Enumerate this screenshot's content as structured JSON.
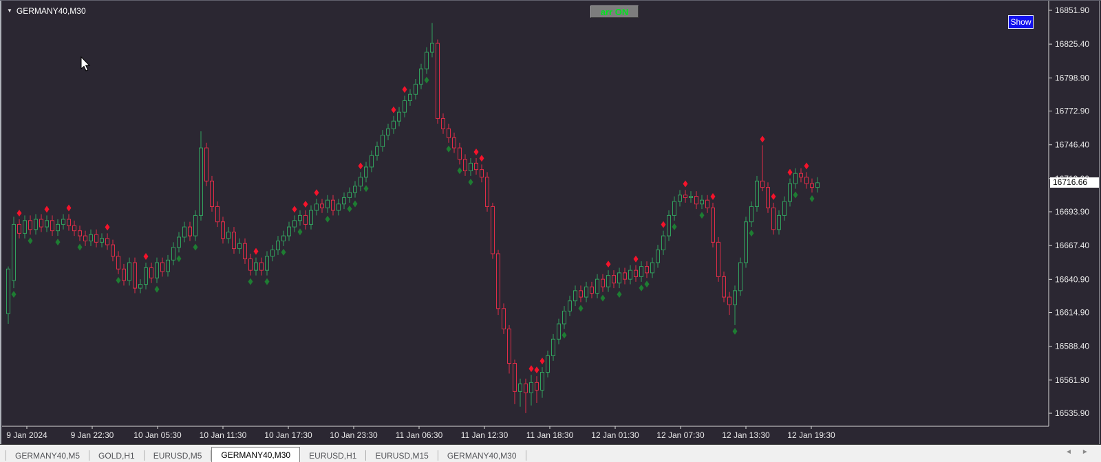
{
  "window": {
    "symbol_label": "GERMANY40,M30",
    "dropdown_icon": "▼"
  },
  "buttons": {
    "arr_toggle_label": "arr ON",
    "show_label": "Show"
  },
  "price_axis": {
    "labels": [
      "16851.90",
      "16825.40",
      "16798.90",
      "16772.90",
      "16746.40",
      "16719.90",
      "16693.90",
      "16667.40",
      "16640.90",
      "16614.90",
      "16588.40",
      "16561.90",
      "16535.90"
    ],
    "current_price": "16716.66"
  },
  "time_axis": {
    "labels": [
      "9 Jan 2024",
      "9 Jan 22:30",
      "10 Jan 05:30",
      "10 Jan 11:30",
      "10 Jan 17:30",
      "10 Jan 23:30",
      "11 Jan 06:30",
      "11 Jan 12:30",
      "11 Jan 18:30",
      "12 Jan 01:30",
      "12 Jan 07:30",
      "12 Jan 13:30",
      "12 Jan 19:30"
    ]
  },
  "tabs": {
    "items": [
      {
        "label": "GERMANY40,M5",
        "active": false
      },
      {
        "label": "GOLD,H1",
        "active": false
      },
      {
        "label": "EURUSD,M5",
        "active": false
      },
      {
        "label": "GERMANY40,M30",
        "active": true
      },
      {
        "label": "EURUSD,H1",
        "active": false
      },
      {
        "label": "EURUSD,M15",
        "active": false
      },
      {
        "label": "GERMANY40,M30",
        "active": false
      }
    ],
    "scroll_left_icon": "◄",
    "scroll_right_icon": "►"
  },
  "colors": {
    "background": "#2b2732",
    "bull_candle": "#32a15e",
    "bear_candle": "#e02d48",
    "sell_arrow": "#f5132b",
    "buy_arrow": "#1e7d32",
    "axis_text": "#e8e8e8",
    "axis_line": "#d8d8d8",
    "arr_button_text": "#00e51f",
    "show_button_bg": "#1212ee",
    "current_price_bg": "#ffffff"
  },
  "chart_data": {
    "type": "candlestick",
    "title": "GERMANY40,M30",
    "symbol": "GERMANY40",
    "timeframe": "M30",
    "ylim": [
      16525.6,
      16859.45
    ],
    "x_tick_labels": [
      "9 Jan 2024",
      "9 Jan 22:30",
      "10 Jan 05:30",
      "10 Jan 11:30",
      "10 Jan 17:30",
      "10 Jan 23:30",
      "11 Jan 06:30",
      "11 Jan 12:30",
      "11 Jan 18:30",
      "12 Jan 01:30",
      "12 Jan 07:30",
      "12 Jan 13:30",
      "12 Jan 19:30"
    ],
    "y_tick_values": [
      16851.9,
      16825.4,
      16798.9,
      16772.9,
      16746.4,
      16719.9,
      16693.9,
      16667.4,
      16640.9,
      16614.9,
      16588.4,
      16561.9,
      16535.9
    ],
    "current_price": 16716.66,
    "grid": false,
    "bar_format": [
      "open",
      "high",
      "low",
      "close",
      "marker(0=none,1=sell_red_diamond_above,2=buy_green_diamond_below)"
    ],
    "bars": [
      [
        16614,
        16651,
        16606,
        16649,
        0
      ],
      [
        16640,
        16690,
        16634,
        16684,
        2
      ],
      [
        16684,
        16688,
        16673,
        16677,
        1
      ],
      [
        16677,
        16691,
        16673,
        16687,
        0
      ],
      [
        16687,
        16691,
        16676,
        16680,
        2
      ],
      [
        16680,
        16692,
        16676,
        16688,
        0
      ],
      [
        16688,
        16692,
        16678,
        16682,
        0
      ],
      [
        16682,
        16691,
        16678,
        16687,
        1
      ],
      [
        16687,
        16691,
        16675,
        16679,
        0
      ],
      [
        16679,
        16688,
        16675,
        16684,
        2
      ],
      [
        16684,
        16692,
        16680,
        16688,
        0
      ],
      [
        16688,
        16692,
        16679,
        16683,
        1
      ],
      [
        16683,
        16687,
        16675,
        16679,
        0
      ],
      [
        16679,
        16683,
        16671,
        16675,
        2
      ],
      [
        16675,
        16679,
        16667,
        16671,
        0
      ],
      [
        16671,
        16680,
        16667,
        16676,
        0
      ],
      [
        16676,
        16680,
        16666,
        16670,
        0
      ],
      [
        16670,
        16677,
        16666,
        16673,
        0
      ],
      [
        16673,
        16677,
        16664,
        16668,
        1
      ],
      [
        16668,
        16672,
        16655,
        16659,
        0
      ],
      [
        16659,
        16663,
        16645,
        16649,
        2
      ],
      [
        16649,
        16653,
        16636,
        16640,
        0
      ],
      [
        16640,
        16658,
        16636,
        16654,
        0
      ],
      [
        16654,
        16658,
        16630,
        16634,
        0
      ],
      [
        16634,
        16641,
        16630,
        16637,
        0
      ],
      [
        16637,
        16654,
        16633,
        16650,
        1
      ],
      [
        16650,
        16654,
        16638,
        16642,
        0
      ],
      [
        16642,
        16658,
        16638,
        16654,
        2
      ],
      [
        16654,
        16658,
        16643,
        16647,
        0
      ],
      [
        16647,
        16660,
        16643,
        16656,
        0
      ],
      [
        16656,
        16670,
        16652,
        16666,
        0
      ],
      [
        16666,
        16678,
        16662,
        16674,
        2
      ],
      [
        16674,
        16686,
        16670,
        16682,
        0
      ],
      [
        16682,
        16686,
        16671,
        16675,
        0
      ],
      [
        16675,
        16695,
        16671,
        16691,
        2
      ],
      [
        16691,
        16757,
        16687,
        16744,
        0
      ],
      [
        16744,
        16748,
        16714,
        16718,
        0
      ],
      [
        16718,
        16722,
        16694,
        16698,
        0
      ],
      [
        16698,
        16702,
        16682,
        16686,
        0
      ],
      [
        16686,
        16690,
        16669,
        16673,
        0
      ],
      [
        16673,
        16682,
        16669,
        16678,
        0
      ],
      [
        16678,
        16682,
        16661,
        16665,
        0
      ],
      [
        16665,
        16673,
        16661,
        16669,
        0
      ],
      [
        16669,
        16673,
        16653,
        16657,
        0
      ],
      [
        16657,
        16661,
        16644,
        16648,
        2
      ],
      [
        16648,
        16658,
        16644,
        16654,
        1
      ],
      [
        16654,
        16658,
        16644,
        16648,
        0
      ],
      [
        16648,
        16663,
        16644,
        16659,
        2
      ],
      [
        16659,
        16668,
        16655,
        16664,
        0
      ],
      [
        16664,
        16675,
        16660,
        16671,
        0
      ],
      [
        16671,
        16679,
        16667,
        16675,
        2
      ],
      [
        16675,
        16686,
        16671,
        16682,
        0
      ],
      [
        16682,
        16691,
        16678,
        16687,
        1
      ],
      [
        16687,
        16695,
        16683,
        16691,
        2
      ],
      [
        16691,
        16695,
        16680,
        16684,
        1
      ],
      [
        16684,
        16699,
        16680,
        16695,
        0
      ],
      [
        16695,
        16704,
        16691,
        16700,
        1
      ],
      [
        16700,
        16704,
        16693,
        16697,
        0
      ],
      [
        16697,
        16707,
        16693,
        16703,
        2
      ],
      [
        16703,
        16707,
        16691,
        16695,
        0
      ],
      [
        16695,
        16704,
        16691,
        16700,
        0
      ],
      [
        16700,
        16709,
        16696,
        16705,
        0
      ],
      [
        16705,
        16713,
        16701,
        16709,
        2
      ],
      [
        16709,
        16718,
        16705,
        16714,
        2
      ],
      [
        16714,
        16725,
        16710,
        16721,
        1
      ],
      [
        16721,
        16733,
        16717,
        16729,
        2
      ],
      [
        16729,
        16742,
        16725,
        16738,
        0
      ],
      [
        16738,
        16749,
        16734,
        16745,
        0
      ],
      [
        16745,
        16758,
        16741,
        16754,
        0
      ],
      [
        16754,
        16763,
        16750,
        16759,
        0
      ],
      [
        16759,
        16769,
        16755,
        16765,
        1
      ],
      [
        16765,
        16776,
        16761,
        16772,
        0
      ],
      [
        16772,
        16785,
        16768,
        16781,
        1
      ],
      [
        16781,
        16790,
        16777,
        16786,
        0
      ],
      [
        16786,
        16798,
        16782,
        16794,
        0
      ],
      [
        16794,
        16810,
        16790,
        16806,
        0
      ],
      [
        16806,
        16823,
        16802,
        16819,
        2
      ],
      [
        16819,
        16842,
        16815,
        16826,
        0
      ],
      [
        16826,
        16829,
        16763,
        16767,
        0
      ],
      [
        16767,
        16771,
        16755,
        16759,
        0
      ],
      [
        16759,
        16763,
        16748,
        16752,
        2
      ],
      [
        16752,
        16756,
        16740,
        16744,
        0
      ],
      [
        16744,
        16748,
        16731,
        16735,
        2
      ],
      [
        16735,
        16739,
        16722,
        16726,
        0
      ],
      [
        16726,
        16736,
        16722,
        16732,
        2
      ],
      [
        16732,
        16736,
        16723,
        16727,
        1
      ],
      [
        16727,
        16731,
        16717,
        16721,
        1
      ],
      [
        16721,
        16725,
        16694,
        16698,
        0
      ],
      [
        16698,
        16701,
        16657,
        16661,
        0
      ],
      [
        16661,
        16664,
        16613,
        16618,
        0
      ],
      [
        16618,
        16622,
        16598,
        16602,
        0
      ],
      [
        16602,
        16605,
        16567,
        16575,
        0
      ],
      [
        16575,
        16578,
        16543,
        16553,
        0
      ],
      [
        16553,
        16563,
        16541,
        16559,
        0
      ],
      [
        16559,
        16563,
        16536,
        16552,
        0
      ],
      [
        16552,
        16566,
        16542,
        16560,
        1
      ],
      [
        16560,
        16565,
        16544,
        16554,
        1
      ],
      [
        16554,
        16572,
        16548,
        16568,
        1
      ],
      [
        16568,
        16585,
        16564,
        16581,
        0
      ],
      [
        16581,
        16598,
        16577,
        16594,
        0
      ],
      [
        16594,
        16610,
        16590,
        16606,
        0
      ],
      [
        16606,
        16620,
        16602,
        16616,
        2
      ],
      [
        16616,
        16628,
        16612,
        16624,
        0
      ],
      [
        16624,
        16636,
        16620,
        16632,
        0
      ],
      [
        16632,
        16636,
        16623,
        16627,
        2
      ],
      [
        16627,
        16639,
        16623,
        16635,
        0
      ],
      [
        16635,
        16639,
        16626,
        16630,
        0
      ],
      [
        16630,
        16645,
        16626,
        16641,
        0
      ],
      [
        16641,
        16645,
        16631,
        16635,
        2
      ],
      [
        16635,
        16648,
        16631,
        16644,
        1
      ],
      [
        16644,
        16648,
        16634,
        16638,
        0
      ],
      [
        16638,
        16650,
        16634,
        16646,
        2
      ],
      [
        16646,
        16650,
        16637,
        16641,
        0
      ],
      [
        16641,
        16652,
        16637,
        16648,
        0
      ],
      [
        16648,
        16652,
        16639,
        16643,
        1
      ],
      [
        16643,
        16655,
        16639,
        16651,
        2
      ],
      [
        16651,
        16655,
        16642,
        16646,
        2
      ],
      [
        16646,
        16658,
        16642,
        16654,
        0
      ],
      [
        16654,
        16668,
        16650,
        16664,
        0
      ],
      [
        16664,
        16679,
        16660,
        16675,
        1
      ],
      [
        16675,
        16695,
        16671,
        16691,
        0
      ],
      [
        16691,
        16706,
        16687,
        16702,
        2
      ],
      [
        16702,
        16711,
        16698,
        16707,
        0
      ],
      [
        16707,
        16711,
        16701,
        16705,
        1
      ],
      [
        16705,
        16710,
        16701,
        16706,
        0
      ],
      [
        16706,
        16710,
        16696,
        16700,
        0
      ],
      [
        16700,
        16707,
        16696,
        16703,
        2
      ],
      [
        16703,
        16707,
        16693,
        16697,
        0
      ],
      [
        16697,
        16701,
        16666,
        16670,
        1
      ],
      [
        16670,
        16674,
        16639,
        16643,
        0
      ],
      [
        16643,
        16647,
        16623,
        16627,
        0
      ],
      [
        16627,
        16631,
        16613,
        16621,
        0
      ],
      [
        16621,
        16636,
        16605,
        16632,
        2
      ],
      [
        16632,
        16658,
        16628,
        16654,
        0
      ],
      [
        16654,
        16690,
        16650,
        16686,
        0
      ],
      [
        16686,
        16702,
        16682,
        16698,
        2
      ],
      [
        16698,
        16722,
        16694,
        16718,
        0
      ],
      [
        16718,
        16746,
        16710,
        16713,
        1
      ],
      [
        16713,
        16717,
        16693,
        16697,
        0
      ],
      [
        16697,
        16701,
        16676,
        16680,
        1
      ],
      [
        16680,
        16695,
        16676,
        16691,
        0
      ],
      [
        16691,
        16706,
        16687,
        16702,
        0
      ],
      [
        16702,
        16720,
        16698,
        16716,
        1
      ],
      [
        16716,
        16728,
        16712,
        16724,
        2
      ],
      [
        16724,
        16728,
        16717,
        16721,
        0
      ],
      [
        16721,
        16725,
        16712,
        16716,
        1
      ],
      [
        16716,
        16720,
        16709,
        16713,
        2
      ],
      [
        16713,
        16721,
        16709,
        16716.66,
        0
      ]
    ]
  }
}
